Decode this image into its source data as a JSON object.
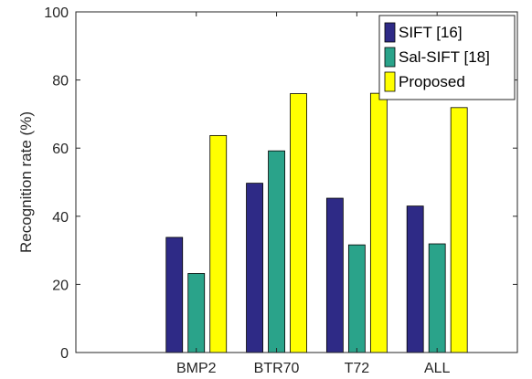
{
  "chart_data": {
    "type": "bar",
    "title": "",
    "xlabel": "",
    "ylabel": "Recognition rate (%)",
    "ylim": [
      0,
      100
    ],
    "yticks": [
      0,
      20,
      40,
      60,
      80,
      100
    ],
    "categories": [
      "BMP2",
      "BTR70",
      "T72",
      "ALL"
    ],
    "series": [
      {
        "name": "SIFT [16]",
        "color": "#2e2a86",
        "values": [
          33.8,
          49.7,
          45.3,
          43.0
        ]
      },
      {
        "name": "Sal-SIFT [18]",
        "color": "#2aa38a",
        "values": [
          23.2,
          59.2,
          31.6,
          31.9
        ]
      },
      {
        "name": "Proposed",
        "color": "#ffff00",
        "values": [
          63.7,
          76.0,
          76.1,
          71.9
        ]
      }
    ],
    "legend_position": "top-right",
    "grid": false
  }
}
